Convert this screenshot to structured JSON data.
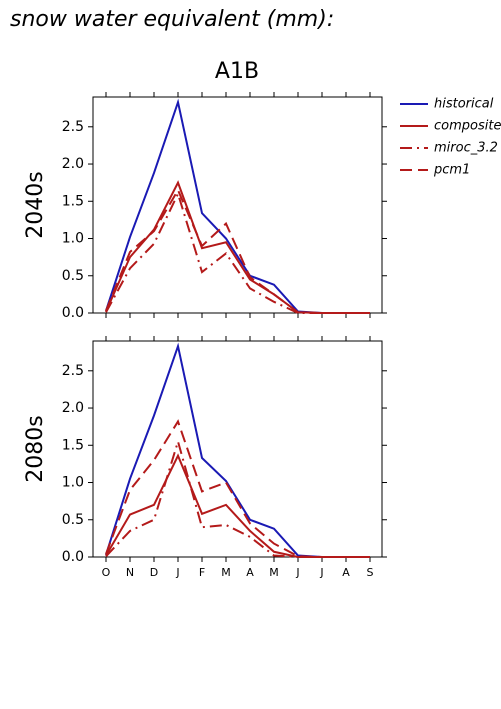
{
  "chart_data": [
    {
      "type": "line",
      "title": "snow water equivalent (mm):",
      "subtitle": "A1B",
      "ylabel": "2040s",
      "categories": [
        null,
        null,
        null,
        null,
        null,
        null,
        null,
        null,
        null,
        null,
        null,
        null
      ],
      "ylim": [
        0,
        2.9
      ],
      "yticks": [
        {
          "value": 0,
          "label": "0.0"
        },
        {
          "value": 0.5,
          "label": "0.5"
        },
        {
          "value": 1,
          "label": "1.0"
        },
        {
          "value": 1.5,
          "label": "1.5"
        },
        {
          "value": 2,
          "label": "2.0"
        },
        {
          "value": 2.5,
          "label": "2.5"
        }
      ],
      "series": [
        {
          "name": "historical",
          "color": "#1a1ab4",
          "dash": "solid",
          "values": [
            0.03,
            1.02,
            1.88,
            2.83,
            1.34,
            1.0,
            0.5,
            0.38,
            0.02,
            0,
            0,
            0
          ]
        },
        {
          "name": "composite",
          "color": "#b41a1a",
          "dash": "solid",
          "values": [
            0.02,
            0.75,
            1.12,
            1.75,
            0.87,
            0.95,
            0.45,
            0.25,
            0.01,
            0,
            0,
            0
          ]
        },
        {
          "name": "miroc_3.2",
          "color": "#b41a1a",
          "dash": "dashdot",
          "values": [
            0.01,
            0.6,
            0.93,
            1.6,
            0.55,
            0.8,
            0.33,
            0.15,
            0,
            0,
            0,
            0
          ]
        },
        {
          "name": "pcm1",
          "color": "#b41a1a",
          "dash": "dash",
          "values": [
            0.03,
            0.82,
            1.1,
            1.65,
            0.9,
            1.2,
            0.48,
            0.25,
            0.01,
            0,
            0,
            0
          ]
        }
      ]
    },
    {
      "type": "line",
      "ylabel": "2080s",
      "categories": [
        "O",
        "N",
        "D",
        "J",
        "F",
        "M",
        "A",
        "M",
        "J",
        "J",
        "A",
        "S"
      ],
      "ylim": [
        0,
        2.9
      ],
      "yticks": [
        {
          "value": 0,
          "label": "0.0"
        },
        {
          "value": 0.5,
          "label": "0.5"
        },
        {
          "value": 1,
          "label": "1.0"
        },
        {
          "value": 1.5,
          "label": "1.5"
        },
        {
          "value": 2,
          "label": "2.0"
        },
        {
          "value": 2.5,
          "label": "2.5"
        }
      ],
      "series": [
        {
          "color": "#1a1ab4",
          "dash": "solid",
          "values": [
            0.03,
            1.05,
            1.9,
            2.83,
            1.33,
            1.02,
            0.5,
            0.38,
            0.02,
            0,
            0,
            0
          ]
        },
        {
          "color": "#b41a1a",
          "dash": "solid",
          "values": [
            0.02,
            0.57,
            0.7,
            1.36,
            0.58,
            0.7,
            0.35,
            0.07,
            0,
            0,
            0,
            0
          ]
        },
        {
          "color": "#b41a1a",
          "dash": "dashdot",
          "values": [
            0.01,
            0.35,
            0.5,
            1.55,
            0.4,
            0.43,
            0.27,
            0.02,
            0,
            0,
            0,
            0
          ]
        },
        {
          "color": "#b41a1a",
          "dash": "dash",
          "values": [
            0.04,
            0.9,
            1.3,
            1.82,
            0.88,
            1.0,
            0.45,
            0.18,
            0.01,
            0,
            0,
            0
          ]
        }
      ]
    }
  ]
}
